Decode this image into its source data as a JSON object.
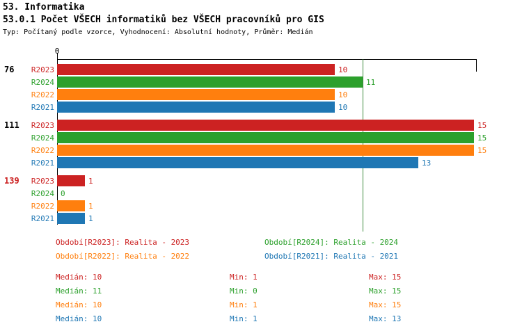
{
  "header": {
    "title": "53. Informatika",
    "subtitle": "53.0.1 Počet VŠECH informatiků bez VŠECH pracovníků pro GIS",
    "meta": "Typ: Počítaný podle vzorce, Vyhodnocení: Absolutní hodnoty, Průměr: Medián"
  },
  "colors": {
    "R2023": "#cc2222",
    "R2024": "#2ca02c",
    "R2022": "#ff7f0e",
    "R2021": "#1f77b4",
    "axis": "#000000",
    "median_line": "#3c8a3c"
  },
  "chart_data": {
    "type": "bar",
    "orientation": "horizontal",
    "title": "53.0.1 Počet VŠECH informatiků bez VŠECH pracovníků pro GIS",
    "xlabel": "",
    "ylabel": "",
    "xlim": [
      0,
      15
    ],
    "x_zero_label": "0",
    "grid": false,
    "legend_position": "bottom",
    "series": [
      "R2023",
      "R2024",
      "R2022",
      "R2021"
    ],
    "median_line_value": 11,
    "groups": [
      {
        "label": "76",
        "label_color": "#000000",
        "values": [
          10,
          11,
          10,
          10
        ]
      },
      {
        "label": "111",
        "label_color": "#000000",
        "values": [
          15,
          15,
          15,
          13
        ]
      },
      {
        "label": "139",
        "label_color": "#cc2222",
        "values": [
          1,
          0,
          1,
          1
        ]
      }
    ]
  },
  "legend": {
    "items": [
      {
        "label": "Období[R2023]: Realita - 2023",
        "color": "#cc2222"
      },
      {
        "label": "Období[R2024]: Realita - 2024",
        "color": "#2ca02c"
      },
      {
        "label": "Období[R2022]: Realita - 2022",
        "color": "#ff7f0e"
      },
      {
        "label": "Období[R2021]: Realita - 2021",
        "color": "#1f77b4"
      }
    ]
  },
  "stats": {
    "rows": [
      {
        "median": "Medián: 10",
        "min": "Min: 1",
        "max": "Max: 15",
        "color": "#cc2222"
      },
      {
        "median": "Medián: 11",
        "min": "Min: 0",
        "max": "Max: 15",
        "color": "#2ca02c"
      },
      {
        "median": "Medián: 10",
        "min": "Min: 1",
        "max": "Max: 15",
        "color": "#ff7f0e"
      },
      {
        "median": "Medián: 10",
        "min": "Min: 1",
        "max": "Max: 13",
        "color": "#1f77b4"
      }
    ]
  }
}
